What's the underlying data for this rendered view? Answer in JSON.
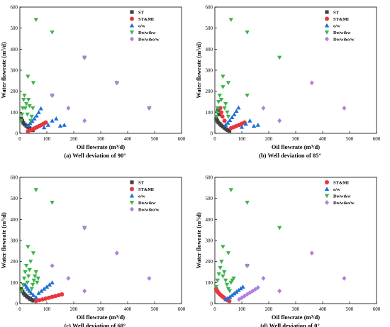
{
  "chart_data": [
    {
      "type": "scatter",
      "caption": "(a) Well deviation of 90°",
      "xlabel": "Oil flowrate (m³/d)",
      "ylabel": "Water flowrate (m³/d)",
      "xlim": [
        0,
        600
      ],
      "ylim": [
        0,
        600
      ],
      "x_ticks": [
        "0",
        "100",
        "200",
        "300",
        "400",
        "500",
        "600"
      ],
      "y_ticks": [
        "0",
        "100",
        "200",
        "300",
        "400",
        "500",
        "600"
      ],
      "legend_position": "top-right",
      "series": [
        {
          "name": "ST",
          "marker": "square",
          "color": "#404040",
          "points": [
            [
              5,
              70
            ],
            [
              9,
              60
            ],
            [
              13,
              50
            ],
            [
              18,
              42
            ],
            [
              24,
              36
            ],
            [
              30,
              30
            ],
            [
              36,
              25
            ],
            [
              42,
              20
            ],
            [
              48,
              15
            ]
          ]
        },
        {
          "name": "ST&MI",
          "marker": "circle",
          "color": "#e8363b",
          "points": [
            [
              30,
              10
            ],
            [
              40,
              15
            ],
            [
              48,
              20
            ],
            [
              56,
              25
            ],
            [
              64,
              30
            ],
            [
              72,
              35
            ],
            [
              80,
              40
            ],
            [
              88,
              46
            ],
            [
              96,
              52
            ]
          ]
        },
        {
          "name": "o/w",
          "marker": "triangle-up",
          "color": "#1f6fd6",
          "points": [
            [
              30,
              38
            ],
            [
              38,
              48
            ],
            [
              46,
              58
            ],
            [
              54,
              70
            ],
            [
              62,
              84
            ],
            [
              70,
              100
            ],
            [
              78,
              118
            ],
            [
              90,
              28
            ],
            [
              105,
              40
            ],
            [
              120,
              60
            ],
            [
              135,
              70
            ],
            [
              150,
              36
            ],
            [
              165,
              40
            ]
          ]
        },
        {
          "name": "Do/w&w",
          "marker": "triangle-down",
          "color": "#3cb44b",
          "points": [
            [
              5,
              60
            ],
            [
              8,
              90
            ],
            [
              11,
              120
            ],
            [
              14,
              160
            ],
            [
              17,
              180
            ],
            [
              20,
              120
            ],
            [
              24,
              140
            ],
            [
              28,
              90
            ],
            [
              32,
              160
            ],
            [
              36,
              130
            ],
            [
              40,
              60
            ],
            [
              44,
              80
            ],
            [
              48,
              120
            ],
            [
              30,
              270
            ],
            [
              50,
              240
            ],
            [
              60,
              540
            ],
            [
              120,
              480
            ],
            [
              120,
              180
            ],
            [
              240,
              360
            ],
            [
              360,
              240
            ],
            [
              480,
              120
            ]
          ]
        },
        {
          "name": "Do/w&o/w",
          "marker": "diamond",
          "color": "#b07fe0",
          "points": [
            [
              120,
              180
            ],
            [
              180,
              120
            ],
            [
              240,
              360
            ],
            [
              240,
              60
            ],
            [
              360,
              240
            ],
            [
              480,
              120
            ]
          ]
        }
      ]
    },
    {
      "type": "scatter",
      "caption": "(b) Well deviation of 85°",
      "xlabel": "Oil flowrate (m³/d)",
      "ylabel": "Water flowrate (m³/d)",
      "xlim": [
        0,
        600
      ],
      "ylim": [
        0,
        600
      ],
      "x_ticks": [
        "0",
        "100",
        "200",
        "300",
        "400",
        "500",
        "600"
      ],
      "y_ticks": [
        "0",
        "100",
        "200",
        "300",
        "400",
        "500",
        "600"
      ],
      "legend_position": "top-right",
      "series": [
        {
          "name": "ST",
          "marker": "square",
          "color": "#404040",
          "points": [
            [
              5,
              70
            ],
            [
              9,
              60
            ],
            [
              13,
              52
            ],
            [
              18,
              45
            ],
            [
              24,
              38
            ],
            [
              30,
              32
            ],
            [
              36,
              26
            ],
            [
              42,
              20
            ],
            [
              48,
              15
            ],
            [
              54,
              12
            ],
            [
              12,
              110
            ],
            [
              16,
              90
            ]
          ]
        },
        {
          "name": "ST&MI",
          "marker": "circle",
          "color": "#e8363b",
          "points": [
            [
              20,
              120
            ],
            [
              24,
              100
            ],
            [
              28,
              80
            ],
            [
              36,
              60
            ],
            [
              60,
              25
            ],
            [
              70,
              30
            ],
            [
              80,
              35
            ],
            [
              90,
              40
            ],
            [
              100,
              46
            ],
            [
              110,
              52
            ]
          ]
        },
        {
          "name": "o/w",
          "marker": "triangle-up",
          "color": "#1f6fd6",
          "points": [
            [
              40,
              40
            ],
            [
              48,
              50
            ],
            [
              56,
              62
            ],
            [
              64,
              76
            ],
            [
              72,
              90
            ],
            [
              80,
              106
            ],
            [
              88,
              122
            ],
            [
              100,
              30
            ],
            [
              115,
              45
            ],
            [
              130,
              60
            ],
            [
              145,
              35
            ],
            [
              160,
              40
            ]
          ]
        },
        {
          "name": "Do/w&w",
          "marker": "triangle-down",
          "color": "#3cb44b",
          "points": [
            [
              5,
              80
            ],
            [
              8,
              100
            ],
            [
              11,
              120
            ],
            [
              14,
              150
            ],
            [
              18,
              180
            ],
            [
              24,
              160
            ],
            [
              30,
              270
            ],
            [
              36,
              120
            ],
            [
              40,
              140
            ],
            [
              46,
              100
            ],
            [
              50,
              80
            ],
            [
              60,
              540
            ],
            [
              120,
              480
            ],
            [
              120,
              180
            ],
            [
              240,
              360
            ],
            [
              30,
              220
            ],
            [
              50,
              240
            ]
          ]
        },
        {
          "name": "Do/w&o/w",
          "marker": "diamond",
          "color": "#b07fe0",
          "points": [
            [
              180,
              120
            ],
            [
              240,
              60
            ],
            [
              360,
              240
            ],
            [
              480,
              120
            ]
          ]
        }
      ]
    },
    {
      "type": "scatter",
      "caption": "(c) Well deviation of 60°",
      "xlabel": "Oil flowrate (m³/d)",
      "ylabel": "Water flowrate (m³/d)",
      "xlim": [
        0,
        600
      ],
      "ylim": [
        0,
        600
      ],
      "x_ticks": [
        "0",
        "100",
        "200",
        "300",
        "400",
        "500",
        "600"
      ],
      "y_ticks": [
        "0",
        "100",
        "200",
        "300",
        "400",
        "500",
        "600"
      ],
      "legend_position": "top-right",
      "series": [
        {
          "name": "ST",
          "marker": "square",
          "color": "#404040",
          "points": [
            [
              5,
              70
            ],
            [
              10,
              58
            ],
            [
              15,
              48
            ],
            [
              20,
              40
            ],
            [
              26,
              34
            ],
            [
              32,
              28
            ],
            [
              38,
              22
            ],
            [
              44,
              18
            ],
            [
              50,
              14
            ]
          ]
        },
        {
          "name": "ST&MI",
          "marker": "circle",
          "color": "#e8363b",
          "points": [
            [
              60,
              12
            ],
            [
              72,
              16
            ],
            [
              84,
              20
            ],
            [
              96,
              24
            ],
            [
              108,
              28
            ],
            [
              120,
              32
            ],
            [
              132,
              36
            ],
            [
              144,
              40
            ],
            [
              156,
              44
            ]
          ]
        },
        {
          "name": "o/w",
          "marker": "triangle-up",
          "color": "#1f6fd6",
          "points": [
            [
              20,
              90
            ],
            [
              25,
              80
            ],
            [
              30,
              70
            ],
            [
              36,
              60
            ],
            [
              42,
              50
            ],
            [
              50,
              40
            ],
            [
              60,
              30
            ],
            [
              70,
              50
            ],
            [
              80,
              60
            ],
            [
              90,
              70
            ],
            [
              100,
              80
            ],
            [
              110,
              90
            ],
            [
              120,
              100
            ]
          ]
        },
        {
          "name": "Do/w&w",
          "marker": "triangle-down",
          "color": "#3cb44b",
          "points": [
            [
              8,
              60
            ],
            [
              12,
              90
            ],
            [
              16,
              120
            ],
            [
              20,
              150
            ],
            [
              24,
              180
            ],
            [
              28,
              100
            ],
            [
              32,
              130
            ],
            [
              36,
              160
            ],
            [
              40,
              200
            ],
            [
              44,
              70
            ],
            [
              48,
              90
            ],
            [
              52,
              110
            ],
            [
              56,
              130
            ],
            [
              60,
              150
            ],
            [
              64,
              100
            ],
            [
              68,
              120
            ],
            [
              30,
              270
            ],
            [
              50,
              240
            ],
            [
              60,
              540
            ],
            [
              120,
              480
            ],
            [
              240,
              360
            ]
          ]
        },
        {
          "name": "Do/w&o/w",
          "marker": "diamond",
          "color": "#b07fe0",
          "points": [
            [
              120,
              180
            ],
            [
              180,
              120
            ],
            [
              240,
              360
            ],
            [
              240,
              60
            ],
            [
              360,
              240
            ],
            [
              480,
              120
            ]
          ]
        }
      ]
    },
    {
      "type": "scatter",
      "caption": "(d) Well deviation of 0°",
      "xlabel": "Oil flowrate (m³/d)",
      "ylabel": "Water flowrate (m³/d)",
      "xlim": [
        0,
        600
      ],
      "ylim": [
        0,
        600
      ],
      "x_ticks": [
        "0",
        "100",
        "200",
        "300",
        "400",
        "500",
        "600"
      ],
      "y_ticks": [
        "0",
        "100",
        "200",
        "300",
        "400",
        "500",
        "600"
      ],
      "legend_position": "top-right",
      "series": [
        {
          "name": "ST&MI",
          "marker": "circle",
          "color": "#e8363b",
          "points": [
            [
              5,
              70
            ],
            [
              9,
              60
            ],
            [
              13,
              52
            ],
            [
              18,
              45
            ],
            [
              24,
              38
            ],
            [
              30,
              32
            ],
            [
              36,
              26
            ],
            [
              42,
              20
            ],
            [
              48,
              15
            ],
            [
              54,
              12
            ]
          ]
        },
        {
          "name": "o/w",
          "marker": "triangle-up",
          "color": "#1f6fd6",
          "points": [
            [
              40,
              20
            ],
            [
              48,
              26
            ],
            [
              56,
              32
            ],
            [
              64,
              40
            ],
            [
              72,
              48
            ],
            [
              80,
              56
            ],
            [
              88,
              64
            ],
            [
              96,
              72
            ],
            [
              104,
              80
            ]
          ]
        },
        {
          "name": "Do/w&w",
          "marker": "triangle-down",
          "color": "#3cb44b",
          "points": [
            [
              5,
              80
            ],
            [
              10,
              110
            ],
            [
              15,
              140
            ],
            [
              20,
              170
            ],
            [
              25,
              200
            ],
            [
              30,
              130
            ],
            [
              35,
              150
            ],
            [
              40,
              110
            ],
            [
              45,
              90
            ],
            [
              50,
              70
            ],
            [
              55,
              60
            ],
            [
              60,
              100
            ],
            [
              65,
              110
            ],
            [
              70,
              120
            ],
            [
              30,
              270
            ],
            [
              50,
              240
            ],
            [
              60,
              540
            ],
            [
              120,
              480
            ],
            [
              120,
              180
            ],
            [
              240,
              360
            ]
          ]
        },
        {
          "name": "Do/w&o/w",
          "marker": "diamond",
          "color": "#b07fe0",
          "points": [
            [
              90,
              20
            ],
            [
              100,
              28
            ],
            [
              110,
              36
            ],
            [
              120,
              44
            ],
            [
              130,
              52
            ],
            [
              140,
              60
            ],
            [
              150,
              68
            ],
            [
              160,
              76
            ],
            [
              120,
              180
            ],
            [
              180,
              120
            ],
            [
              240,
              60
            ],
            [
              360,
              240
            ],
            [
              480,
              120
            ]
          ]
        }
      ]
    }
  ]
}
